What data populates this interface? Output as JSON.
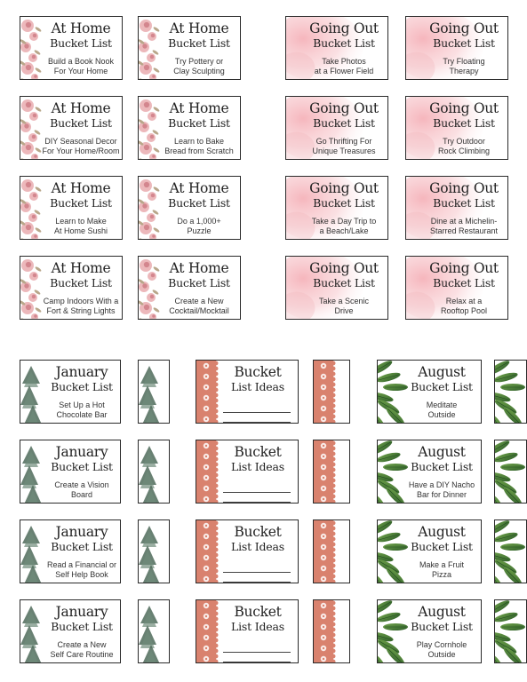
{
  "sections": {
    "at_home": {
      "title_line1": "At Home",
      "title_line2": "Bucket List",
      "accent": "#e7a6aa",
      "cards": [
        "Build a Book Nook\nFor Your Home",
        "Try Pottery or\nClay Sculpting",
        "DIY Seasonal Decor\nFor Your Home/Room",
        "Learn to Bake\nBread from Scratch",
        "Learn to Make\nAt Home Sushi",
        "Do a 1,000+\nPuzzle",
        "Camp Indoors With a\nFort & String Lights",
        "Create a New\nCocktail/Mocktail"
      ]
    },
    "going_out": {
      "title_line1": "Going Out",
      "title_line2": "Bucket List",
      "accent": "#f2b7bc",
      "cards": [
        "Take Photos\nat a Flower Field",
        "Try Floating\nTherapy",
        "Go Thrifting For\nUnique Treasures",
        "Try Outdoor\nRock Climbing",
        "Take a Day Trip to\na Beach/Lake",
        "Dine at a Michelin-\nStarred Restaurant",
        "Take a Scenic\nDrive",
        "Relax at a\nRooftop Pool"
      ]
    },
    "january": {
      "title_line1": "January",
      "title_line2": "Bucket List",
      "accent": "#4f6b5a",
      "cards": [
        "Set Up a Hot\nChocolate Bar",
        "Create a Vision\nBoard",
        "Read a Financial or\nSelf Help Book",
        "Create a New\nSelf Care Routine"
      ]
    },
    "ideas": {
      "title_line1": "Bucket",
      "title_line2": "List Ideas",
      "accent": "#d9826e"
    },
    "august": {
      "title_line1": "August",
      "title_line2": "Bucket List",
      "accent": "#3f7a36",
      "cards": [
        "Meditate\nOutside",
        "Have a DIY Nacho\nBar for Dinner",
        "Make a Fruit\nPizza",
        "Play Cornhole\nOutside"
      ]
    }
  }
}
